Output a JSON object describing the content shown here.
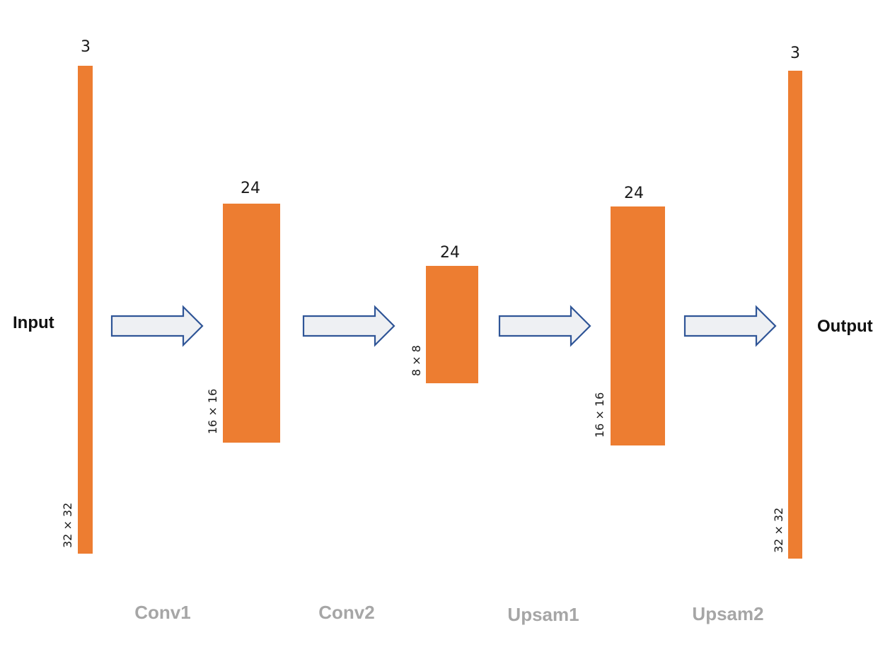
{
  "labels": {
    "input": "Input",
    "output": "Output"
  },
  "layers": [
    {
      "id": "input",
      "channels": "3",
      "size": "32 × 32"
    },
    {
      "id": "conv1_out",
      "channels": "24",
      "size": "16 × 16"
    },
    {
      "id": "conv2_out",
      "channels": "24",
      "size": "8 × 8"
    },
    {
      "id": "upsam1_out",
      "channels": "24",
      "size": "16 × 16"
    },
    {
      "id": "output",
      "channels": "3",
      "size": "32 × 32"
    }
  ],
  "operations": [
    "Conv1",
    "Conv2",
    "Upsam1",
    "Upsam2"
  ],
  "colors": {
    "feature_map": "#ED7D31",
    "arrow_fill": "#EEF0F3",
    "arrow_stroke": "#2F5597",
    "operation_text": "#A6A6A6"
  }
}
